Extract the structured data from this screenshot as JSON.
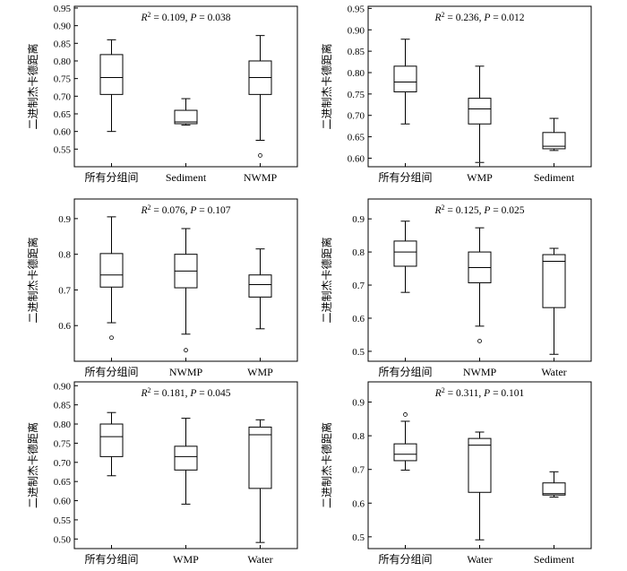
{
  "figure": {
    "ylabel": "二进制杰卡德距离"
  },
  "chart_data": [
    {
      "type": "box",
      "annotation": "R2 = 0.109, P = 0.038",
      "r2": "0.109",
      "p": "0.038",
      "categories": [
        "所有分组间",
        "Sediment",
        "NWMP"
      ],
      "ylabel": "二进制杰卡德距离",
      "ylim": [
        0.5,
        0.955
      ],
      "yticks": [
        0.55,
        0.6,
        0.65,
        0.7,
        0.75,
        0.8,
        0.85,
        0.9,
        0.95
      ],
      "tick_decimals": 2,
      "boxes": [
        {
          "min": 0.6,
          "q1": 0.705,
          "median": 0.753,
          "q3": 0.818,
          "max": 0.86,
          "outliers": []
        },
        {
          "min": 0.618,
          "q1": 0.622,
          "median": 0.627,
          "q3": 0.66,
          "max": 0.693,
          "outliers": []
        },
        {
          "min": 0.575,
          "q1": 0.705,
          "median": 0.753,
          "q3": 0.8,
          "max": 0.872,
          "outliers": [
            0.532
          ]
        }
      ]
    },
    {
      "type": "box",
      "annotation": "R2 = 0.236, P = 0.012",
      "r2": "0.236",
      "p": "0.012",
      "categories": [
        "所有分组间",
        "WMP",
        "Sediment"
      ],
      "ylabel": "二进制杰卡德距离",
      "ylim": [
        0.58,
        0.955
      ],
      "yticks": [
        0.6,
        0.65,
        0.7,
        0.75,
        0.8,
        0.85,
        0.9,
        0.95
      ],
      "tick_decimals": 2,
      "boxes": [
        {
          "min": 0.68,
          "q1": 0.755,
          "median": 0.778,
          "q3": 0.815,
          "max": 0.878,
          "outliers": []
        },
        {
          "min": 0.59,
          "q1": 0.68,
          "median": 0.715,
          "q3": 0.74,
          "max": 0.815,
          "outliers": []
        },
        {
          "min": 0.618,
          "q1": 0.622,
          "median": 0.628,
          "q3": 0.66,
          "max": 0.693,
          "outliers": []
        }
      ]
    },
    {
      "type": "box",
      "annotation": "R2 = 0.076, P = 0.107",
      "r2": "0.076",
      "p": "0.107",
      "categories": [
        "所有分组间",
        "NWMP",
        "WMP"
      ],
      "ylabel": "二进制杰卡德距离",
      "ylim": [
        0.5,
        0.955
      ],
      "yticks": [
        0.6,
        0.7,
        0.8,
        0.9
      ],
      "tick_decimals": 1,
      "boxes": [
        {
          "min": 0.608,
          "q1": 0.708,
          "median": 0.742,
          "q3": 0.802,
          "max": 0.905,
          "outliers": [
            0.566
          ]
        },
        {
          "min": 0.576,
          "q1": 0.706,
          "median": 0.753,
          "q3": 0.8,
          "max": 0.872,
          "outliers": [
            0.531
          ]
        },
        {
          "min": 0.591,
          "q1": 0.68,
          "median": 0.715,
          "q3": 0.742,
          "max": 0.815,
          "outliers": []
        }
      ]
    },
    {
      "type": "box",
      "annotation": "R2 = 0.125, P = 0.025",
      "r2": "0.125",
      "p": "0.025",
      "categories": [
        "所有分组间",
        "NWMP",
        "Water"
      ],
      "ylabel": "二进制杰卡德距离",
      "ylim": [
        0.47,
        0.96
      ],
      "yticks": [
        0.5,
        0.6,
        0.7,
        0.8,
        0.9
      ],
      "tick_decimals": 1,
      "boxes": [
        {
          "min": 0.678,
          "q1": 0.757,
          "median": 0.8,
          "q3": 0.833,
          "max": 0.893,
          "outliers": []
        },
        {
          "min": 0.576,
          "q1": 0.707,
          "median": 0.753,
          "q3": 0.8,
          "max": 0.873,
          "outliers": [
            0.531
          ]
        },
        {
          "min": 0.491,
          "q1": 0.632,
          "median": 0.772,
          "q3": 0.792,
          "max": 0.811,
          "outliers": []
        }
      ]
    },
    {
      "type": "box",
      "annotation": "R2 = 0.181, P = 0.045",
      "r2": "0.181",
      "p": "0.045",
      "categories": [
        "所有分组间",
        "WMP",
        "Water"
      ],
      "ylabel": "二进制杰卡德距离",
      "ylim": [
        0.475,
        0.91
      ],
      "yticks": [
        0.5,
        0.55,
        0.6,
        0.65,
        0.7,
        0.75,
        0.8,
        0.85,
        0.9
      ],
      "tick_decimals": 2,
      "boxes": [
        {
          "min": 0.665,
          "q1": 0.715,
          "median": 0.767,
          "q3": 0.8,
          "max": 0.83,
          "outliers": []
        },
        {
          "min": 0.591,
          "q1": 0.68,
          "median": 0.715,
          "q3": 0.742,
          "max": 0.815,
          "outliers": []
        },
        {
          "min": 0.491,
          "q1": 0.632,
          "median": 0.772,
          "q3": 0.792,
          "max": 0.811,
          "outliers": []
        }
      ]
    },
    {
      "type": "box",
      "annotation": "R2 = 0.311, P = 0.101",
      "r2": "0.311",
      "p": "0.101",
      "categories": [
        "所有分组间",
        "Water",
        "Sediment"
      ],
      "ylabel": "二进制杰卡德距离",
      "ylim": [
        0.465,
        0.96
      ],
      "yticks": [
        0.5,
        0.6,
        0.7,
        0.8,
        0.9
      ],
      "tick_decimals": 1,
      "boxes": [
        {
          "min": 0.698,
          "q1": 0.726,
          "median": 0.745,
          "q3": 0.776,
          "max": 0.843,
          "outliers": [
            0.863
          ]
        },
        {
          "min": 0.491,
          "q1": 0.632,
          "median": 0.772,
          "q3": 0.792,
          "max": 0.811,
          "outliers": []
        },
        {
          "min": 0.618,
          "q1": 0.624,
          "median": 0.628,
          "q3": 0.66,
          "max": 0.693,
          "outliers": []
        }
      ]
    }
  ]
}
